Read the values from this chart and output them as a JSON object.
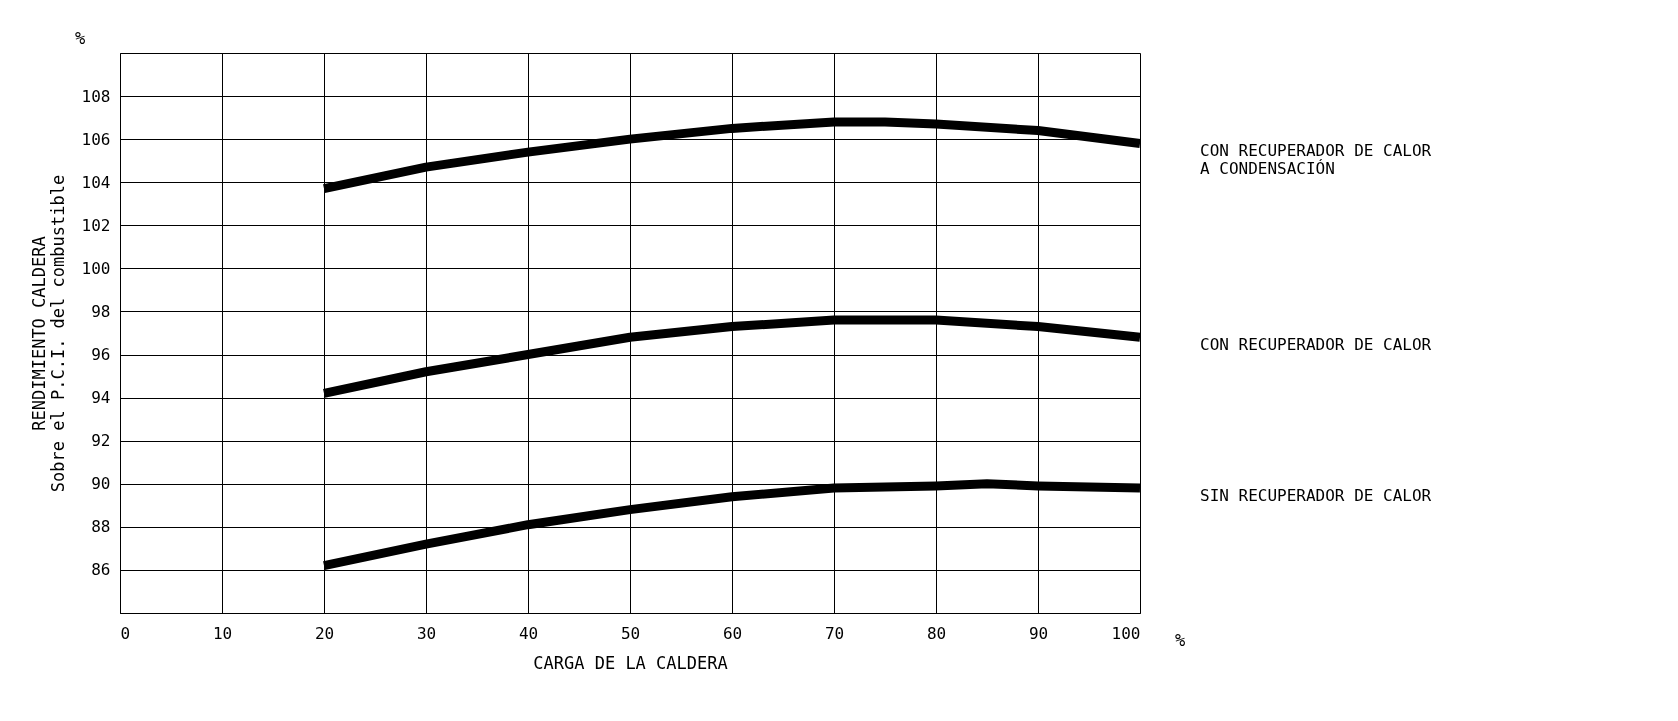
{
  "chart_data": {
    "type": "line",
    "xlabel": "CARGA DE LA CALDERA",
    "ylabel": "RENDIMIENTO CALDERA\nSobre el P.C.I. del combustible",
    "xlim": [
      0,
      100
    ],
    "xticks": [
      0,
      10,
      20,
      30,
      40,
      50,
      60,
      70,
      80,
      90,
      100
    ],
    "ylim": [
      84,
      110
    ],
    "yticks": [
      {
        "value": 84,
        "label": null
      },
      86,
      88,
      90,
      92,
      94,
      96,
      98,
      100,
      102,
      104,
      106,
      108,
      {
        "value": 110,
        "label": null
      }
    ],
    "grid": true,
    "legend": false,
    "marker": "none",
    "line_style": "solid",
    "annotations": [
      "%",
      "%"
    ],
    "series": [
      {
        "name": "CON RECUPERADOR DE CALOR\nA CONDENSACIÓN",
        "color": "#000000",
        "x": [
          20,
          30,
          40,
          50,
          60,
          70,
          75,
          80,
          90,
          100
        ],
        "values": [
          103.7,
          104.7,
          105.4,
          106.0,
          106.5,
          106.8,
          106.8,
          106.7,
          106.4,
          105.8
        ]
      },
      {
        "name": "CON RECUPERADOR DE CALOR",
        "color": "#000000",
        "x": [
          20,
          30,
          40,
          50,
          60,
          70,
          80,
          90,
          100
        ],
        "values": [
          94.2,
          95.2,
          96.0,
          96.8,
          97.3,
          97.6,
          97.6,
          97.3,
          96.8
        ]
      },
      {
        "name": "SIN RECUPERADOR DE CALOR",
        "color": "#000000",
        "x": [
          20,
          30,
          40,
          50,
          60,
          70,
          80,
          85,
          90,
          100
        ],
        "values": [
          86.2,
          87.2,
          88.1,
          88.8,
          89.4,
          89.8,
          89.9,
          90.0,
          89.9,
          89.8
        ]
      }
    ]
  }
}
